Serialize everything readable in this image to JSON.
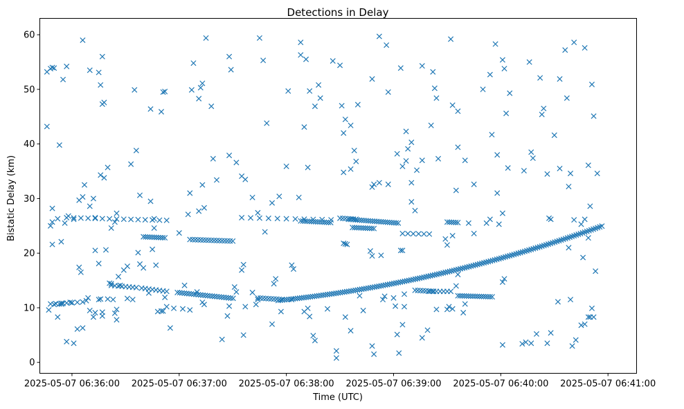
{
  "chart_data": {
    "type": "scatter",
    "title": "Detections in Delay",
    "xlabel": "Time (UTC)",
    "ylabel": "Bistatic Delay (km)",
    "marker": "x",
    "color": "#1f77b4",
    "xlim_seconds": [
      -18,
      316
    ],
    "ylim": [
      -2,
      63
    ],
    "x_tick_seconds": [
      0,
      60,
      120,
      180,
      240,
      300
    ],
    "x_tick_labels": [
      "2025-05-07 06:36:00",
      "2025-05-07 06:37:00",
      "2025-05-07 06:38:00",
      "2025-05-07 06:39:00",
      "2025-05-07 06:40:00",
      "2025-05-07 06:41:00"
    ],
    "y_ticks": [
      0,
      10,
      20,
      30,
      40,
      50,
      60
    ],
    "y_tick_labels": [
      "0",
      "10",
      "20",
      "30",
      "40",
      "50",
      "60"
    ],
    "x_unit": "seconds after 2025-05-07 06:36:00 UTC",
    "track_main": {
      "x_start": -7,
      "x_end": 297,
      "step": 1.2,
      "y_start": 10.7,
      "y_at_123": 11.6,
      "y_end": 25.0
    },
    "track_segments": [
      {
        "x": [
          -3,
          54
        ],
        "y": [
          26.5,
          26.0
        ],
        "step": 4
      },
      {
        "x": [
          40,
          53
        ],
        "y": [
          23.0,
          22.8
        ],
        "step": 1.2
      },
      {
        "x": [
          66,
          91
        ],
        "y": [
          22.5,
          22.2
        ],
        "step": 1.5
      },
      {
        "x": [
          95,
          146
        ],
        "y": [
          26.5,
          26.1
        ],
        "step": 5
      },
      {
        "x": [
          128,
          145
        ],
        "y": [
          25.9,
          25.6
        ],
        "step": 1.2
      },
      {
        "x": [
          150,
          160
        ],
        "y": [
          26.4,
          26.2
        ],
        "step": 1.5
      },
      {
        "x": [
          155,
          183
        ],
        "y": [
          26.2,
          25.5
        ],
        "step": 1.2
      },
      {
        "x": [
          152,
          154
        ],
        "y": [
          21.8,
          21.6
        ],
        "step": 1
      },
      {
        "x": [
          157,
          170
        ],
        "y": [
          24.7,
          24.5
        ],
        "step": 1.2
      },
      {
        "x": [
          185,
          200
        ],
        "y": [
          23.6,
          23.5
        ],
        "step": 3
      },
      {
        "x": [
          210,
          216
        ],
        "y": [
          25.7,
          25.6
        ],
        "step": 1.2
      },
      {
        "x": [
          59,
          91
        ],
        "y": [
          12.8,
          11.7
        ],
        "step": 1.3
      },
      {
        "x": [
          22,
          36
        ],
        "y": [
          14.1,
          13.7
        ],
        "step": 2
      },
      {
        "x": [
          39,
          53
        ],
        "y": [
          13.6,
          13.0
        ],
        "step": 2
      },
      {
        "x": [
          104,
          118
        ],
        "y": [
          11.8,
          11.5
        ],
        "step": 1.5
      },
      {
        "x": [
          192,
          203
        ],
        "y": [
          13.2,
          13.0
        ],
        "step": 1.5
      },
      {
        "x": [
          216,
          236
        ],
        "y": [
          12.2,
          12.0
        ],
        "step": 1.2
      },
      {
        "x": [
          -12,
          8
        ],
        "y": [
          10.7,
          11.1
        ],
        "step": 3
      },
      {
        "x": [
          200,
          212
        ],
        "y": [
          13.0,
          13.0
        ],
        "step": 2
      }
    ],
    "scatter_points": [
      [
        -14,
        53.2
      ],
      [
        -12,
        53.8
      ],
      [
        -11,
        54.0
      ],
      [
        -10,
        53.9
      ],
      [
        -5,
        51.8
      ],
      [
        -3,
        54.2
      ],
      [
        -7,
        39.8
      ],
      [
        -14,
        43.2
      ],
      [
        6,
        59.0
      ],
      [
        10,
        53.5
      ],
      [
        15,
        53.1
      ],
      [
        17,
        47.3
      ],
      [
        18,
        47.6
      ],
      [
        16,
        50.8
      ],
      [
        17,
        56.0
      ],
      [
        35,
        49.9
      ],
      [
        44,
        46.4
      ],
      [
        50,
        45.9
      ],
      [
        52,
        49.6
      ],
      [
        51,
        49.5
      ],
      [
        67,
        49.9
      ],
      [
        71,
        48.3
      ],
      [
        72,
        50.3
      ],
      [
        73,
        51.1
      ],
      [
        68,
        54.8
      ],
      [
        75,
        59.4
      ],
      [
        78,
        46.9
      ],
      [
        88,
        56.0
      ],
      [
        89,
        53.6
      ],
      [
        105,
        59.4
      ],
      [
        -11,
        28.2
      ],
      [
        -12,
        25.0
      ],
      [
        -11,
        25.7
      ],
      [
        -11,
        21.6
      ],
      [
        -8,
        26.3
      ],
      [
        -6,
        22.1
      ],
      [
        -4,
        25.5
      ],
      [
        -2,
        26.8
      ],
      [
        1,
        26.2
      ],
      [
        4,
        29.7
      ],
      [
        6,
        30.3
      ],
      [
        7,
        32.5
      ],
      [
        10,
        28.6
      ],
      [
        12,
        30.0
      ],
      [
        13,
        26.5
      ],
      [
        16,
        34.3
      ],
      [
        18,
        33.8
      ],
      [
        20,
        35.7
      ],
      [
        22,
        24.6
      ],
      [
        24,
        25.7
      ],
      [
        25,
        27.3
      ],
      [
        19,
        20.6
      ],
      [
        13,
        20.5
      ],
      [
        33,
        36.3
      ],
      [
        36,
        38.8
      ],
      [
        38,
        30.6
      ],
      [
        44,
        29.5
      ],
      [
        46,
        26.3
      ],
      [
        46,
        24.6
      ],
      [
        38,
        18.0
      ],
      [
        40,
        17.3
      ],
      [
        31,
        17.6
      ],
      [
        29,
        16.9
      ],
      [
        66,
        31.0
      ],
      [
        60,
        23.7
      ],
      [
        65,
        27.1
      ],
      [
        71,
        27.7
      ],
      [
        74,
        28.3
      ],
      [
        73,
        32.5
      ],
      [
        81,
        33.4
      ],
      [
        79,
        37.3
      ],
      [
        88,
        37.9
      ],
      [
        92,
        36.6
      ],
      [
        95,
        34.1
      ],
      [
        97,
        33.5
      ],
      [
        101,
        30.2
      ],
      [
        104,
        27.4
      ],
      [
        108,
        23.9
      ],
      [
        112,
        29.2
      ],
      [
        116,
        30.4
      ],
      [
        120,
        35.9
      ],
      [
        127,
        30.2
      ],
      [
        128,
        58.6
      ],
      [
        128,
        56.3
      ],
      [
        131,
        55.5
      ],
      [
        133,
        49.7
      ],
      [
        136,
        46.9
      ],
      [
        138,
        50.8
      ],
      [
        139,
        48.4
      ],
      [
        107,
        55.3
      ],
      [
        109,
        43.8
      ],
      [
        121,
        49.7
      ],
      [
        130,
        43.1
      ],
      [
        132,
        35.7
      ],
      [
        146,
        55.2
      ],
      [
        150,
        54.4
      ],
      [
        151,
        47.0
      ],
      [
        152,
        42.0
      ],
      [
        153,
        44.5
      ],
      [
        156,
        43.4
      ],
      [
        158,
        38.8
      ],
      [
        159,
        36.8
      ],
      [
        156,
        35.4
      ],
      [
        152,
        34.8
      ],
      [
        160,
        47.2
      ],
      [
        168,
        51.9
      ],
      [
        172,
        59.7
      ],
      [
        176,
        58.1
      ],
      [
        177,
        49.5
      ],
      [
        184,
        53.9
      ],
      [
        182,
        38.2
      ],
      [
        187,
        42.3
      ],
      [
        190,
        40.3
      ],
      [
        188,
        39.1
      ],
      [
        185,
        35.9
      ],
      [
        187,
        36.9
      ],
      [
        193,
        35.2
      ],
      [
        190,
        32.9
      ],
      [
        196,
        37.0
      ],
      [
        196,
        54.3
      ],
      [
        202,
        53.2
      ],
      [
        203,
        50.2
      ],
      [
        204,
        48.4
      ],
      [
        201,
        43.4
      ],
      [
        205,
        37.3
      ],
      [
        190,
        29.4
      ],
      [
        192,
        27.8
      ],
      [
        168,
        32.1
      ],
      [
        169,
        32.6
      ],
      [
        172,
        32.9
      ],
      [
        177,
        32.6
      ],
      [
        184,
        20.5
      ],
      [
        185,
        20.5
      ],
      [
        167,
        20.4
      ],
      [
        168,
        19.5
      ],
      [
        173,
        19.6
      ],
      [
        212,
        59.2
      ],
      [
        216,
        46.0
      ],
      [
        213,
        47.1
      ],
      [
        216,
        39.4
      ],
      [
        220,
        37.0
      ],
      [
        222,
        25.5
      ],
      [
        225,
        32.6
      ],
      [
        215,
        31.5
      ],
      [
        213,
        23.2
      ],
      [
        209,
        22.6
      ],
      [
        210,
        21.5
      ],
      [
        225,
        23.6
      ],
      [
        230,
        50.0
      ],
      [
        234,
        52.7
      ],
      [
        235,
        41.7
      ],
      [
        237,
        58.3
      ],
      [
        241,
        55.4
      ],
      [
        242,
        53.8
      ],
      [
        238,
        38.0
      ],
      [
        243,
        45.6
      ],
      [
        245,
        49.3
      ],
      [
        244,
        35.6
      ],
      [
        238,
        31.0
      ],
      [
        241,
        27.3
      ],
      [
        239,
        25.3
      ],
      [
        232,
        25.5
      ],
      [
        234,
        26.2
      ],
      [
        256,
        55.0
      ],
      [
        257,
        38.5
      ],
      [
        258,
        37.4
      ],
      [
        253,
        35.1
      ],
      [
        262,
        52.1
      ],
      [
        263,
        45.4
      ],
      [
        264,
        46.5
      ],
      [
        266,
        34.5
      ],
      [
        267,
        26.4
      ],
      [
        268,
        26.2
      ],
      [
        270,
        41.6
      ],
      [
        273,
        51.9
      ],
      [
        276,
        57.2
      ],
      [
        277,
        48.4
      ],
      [
        278,
        32.2
      ],
      [
        279,
        34.6
      ],
      [
        281,
        26.1
      ],
      [
        285,
        25.3
      ],
      [
        286,
        19.2
      ],
      [
        287,
        57.6
      ],
      [
        289,
        36.1
      ],
      [
        291,
        50.9
      ],
      [
        292,
        45.1
      ],
      [
        294,
        34.6
      ],
      [
        290,
        28.6
      ],
      [
        287,
        26.2
      ],
      [
        289,
        22.8
      ],
      [
        273,
        35.5
      ],
      [
        281,
        58.6
      ],
      [
        278,
        21.0
      ],
      [
        -13,
        9.6
      ],
      [
        -10,
        10.6
      ],
      [
        -5,
        10.8
      ],
      [
        -8,
        8.3
      ],
      [
        -1,
        11.0
      ],
      [
        0,
        10.9
      ],
      [
        -3,
        3.8
      ],
      [
        1,
        3.5
      ],
      [
        3,
        6.1
      ],
      [
        6,
        6.3
      ],
      [
        5,
        16.5
      ],
      [
        4,
        17.4
      ],
      [
        8,
        11.3
      ],
      [
        9,
        11.8
      ],
      [
        10,
        9.5
      ],
      [
        12,
        8.3
      ],
      [
        13,
        9.1
      ],
      [
        15,
        11.5
      ],
      [
        16,
        11.6
      ],
      [
        17,
        9.2
      ],
      [
        17,
        8.5
      ],
      [
        20,
        11.6
      ],
      [
        23,
        11.5
      ],
      [
        24,
        9.0
      ],
      [
        25,
        9.7
      ],
      [
        25,
        7.8
      ],
      [
        26,
        15.7
      ],
      [
        21,
        14.5
      ],
      [
        22,
        14.4
      ],
      [
        27,
        14.1
      ],
      [
        15,
        18.1
      ],
      [
        31,
        11.7
      ],
      [
        34,
        11.5
      ],
      [
        37,
        20.1
      ],
      [
        43,
        12.7
      ],
      [
        45,
        20.7
      ],
      [
        47,
        17.8
      ],
      [
        50,
        9.4
      ],
      [
        48,
        9.3
      ],
      [
        51,
        9.4
      ],
      [
        53,
        10.2
      ],
      [
        52,
        11.9
      ],
      [
        55,
        6.3
      ],
      [
        57,
        9.9
      ],
      [
        62,
        9.8
      ],
      [
        63,
        14.1
      ],
      [
        66,
        9.6
      ],
      [
        70,
        12.9
      ],
      [
        73,
        11.0
      ],
      [
        74,
        10.6
      ],
      [
        84,
        4.2
      ],
      [
        87,
        8.5
      ],
      [
        88,
        10.3
      ],
      [
        91,
        13.8
      ],
      [
        92,
        12.9
      ],
      [
        96,
        5.0
      ],
      [
        97,
        10.2
      ],
      [
        95,
        16.9
      ],
      [
        96,
        17.9
      ],
      [
        101,
        12.8
      ],
      [
        103,
        10.6
      ],
      [
        104,
        11.5
      ],
      [
        112,
        7.0
      ],
      [
        113,
        14.4
      ],
      [
        114,
        15.3
      ],
      [
        117,
        9.3
      ],
      [
        123,
        11.5
      ],
      [
        123,
        17.8
      ],
      [
        124,
        17.1
      ],
      [
        130,
        9.3
      ],
      [
        132,
        9.9
      ],
      [
        133,
        8.4
      ],
      [
        135,
        4.9
      ],
      [
        136,
        4.0
      ],
      [
        143,
        9.8
      ],
      [
        148,
        2.1
      ],
      [
        148,
        0.8
      ],
      [
        153,
        8.3
      ],
      [
        156,
        5.8
      ],
      [
        161,
        12.2
      ],
      [
        163,
        9.5
      ],
      [
        168,
        3.0
      ],
      [
        169,
        1.5
      ],
      [
        174,
        11.5
      ],
      [
        175,
        12.1
      ],
      [
        180,
        11.8
      ],
      [
        181,
        10.3
      ],
      [
        182,
        5.1
      ],
      [
        183,
        1.7
      ],
      [
        185,
        6.9
      ],
      [
        186,
        10.2
      ],
      [
        186,
        12.5
      ],
      [
        196,
        4.5
      ],
      [
        199,
        5.9
      ],
      [
        204,
        9.7
      ],
      [
        210,
        9.7
      ],
      [
        213,
        9.8
      ],
      [
        211,
        10.2
      ],
      [
        220,
        10.7
      ],
      [
        219,
        9.1
      ],
      [
        215,
        14.0
      ],
      [
        216,
        16.1
      ],
      [
        241,
        3.2
      ],
      [
        241,
        14.7
      ],
      [
        242,
        15.3
      ],
      [
        252,
        3.4
      ],
      [
        254,
        3.7
      ],
      [
        257,
        3.5
      ],
      [
        260,
        5.2
      ],
      [
        266,
        3.5
      ],
      [
        268,
        5.4
      ],
      [
        272,
        11.1
      ],
      [
        279,
        11.5
      ],
      [
        280,
        3.0
      ],
      [
        282,
        4.1
      ],
      [
        285,
        6.8
      ],
      [
        287,
        7.0
      ],
      [
        289,
        8.3
      ],
      [
        290,
        8.3
      ],
      [
        291,
        9.9
      ],
      [
        293,
        16.7
      ],
      [
        292,
        8.3
      ]
    ]
  }
}
